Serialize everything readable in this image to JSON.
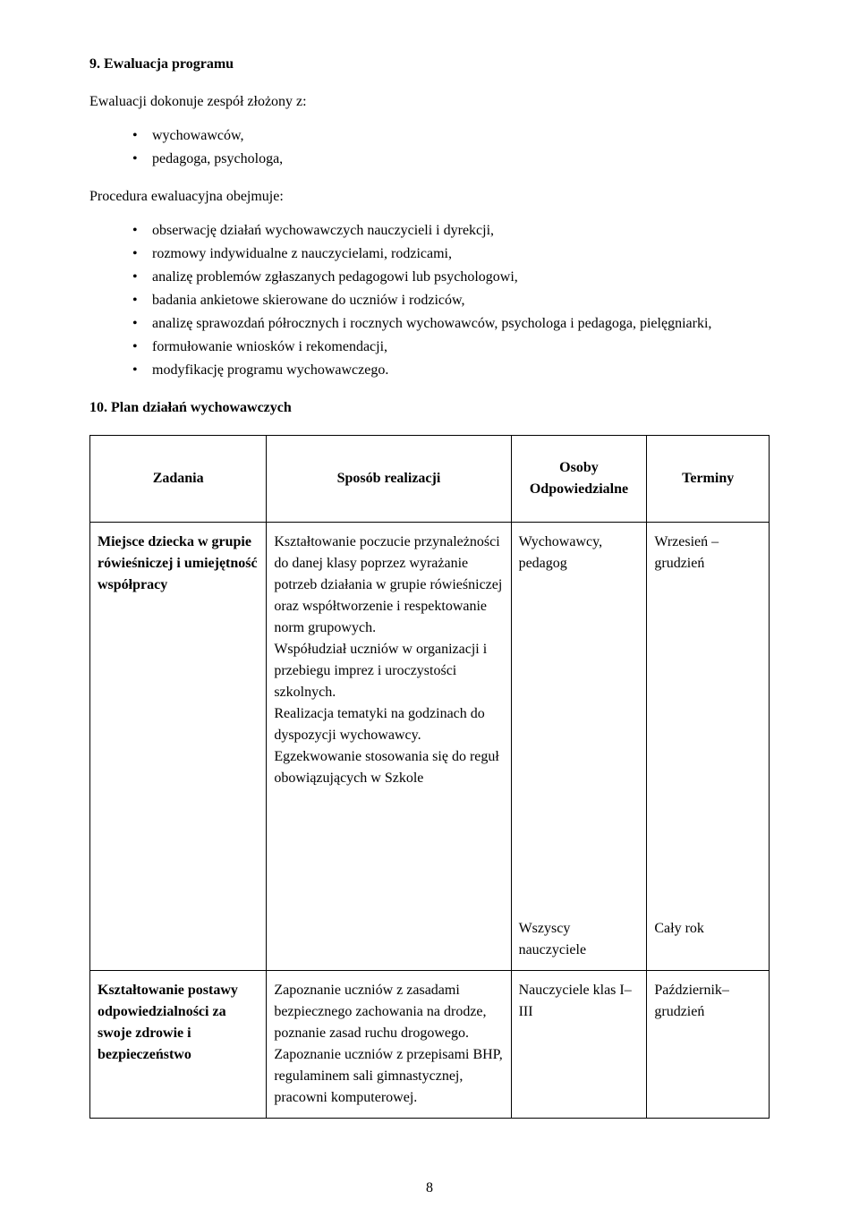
{
  "heading1": "9. Ewaluacja programu",
  "intro1": "Ewaluacji dokonuje zespół złożony z:",
  "list1": [
    "wychowawców,",
    "pedagoga, psychologa,"
  ],
  "intro2": "Procedura ewaluacyjna obejmuje:",
  "list2": [
    "obserwację działań wychowawczych nauczycieli i dyrekcji,",
    "rozmowy indywidualne z nauczycielami, rodzicami,",
    "analizę problemów zgłaszanych pedagogowi lub psychologowi,",
    "badania ankietowe skierowane do uczniów i rodziców,",
    "analizę sprawozdań półrocznych i rocznych wychowawców, psychologa i pedagoga, pielęgniarki,",
    "formułowanie wniosków i rekomendacji,",
    "modyfikację programu wychowawczego."
  ],
  "heading2": "10. Plan działań wychowawczych",
  "table": {
    "headers": [
      "Zadania",
      "Sposób realizacji",
      "Osoby Odpowiedzialne",
      "Terminy"
    ],
    "rows": [
      {
        "zadania": "Miejsce dziecka w grupie rówieśniczej i umiejętność współpracy",
        "sposob": "Kształtowanie poczucie przynależności do danej klasy poprzez wyrażanie potrzeb działania w grupie rówieśniczej oraz współtworzenie i respektowanie norm grupowych.\nWspółudział uczniów w organizacji i przebiegu imprez i uroczystości szkolnych.\nRealizacja tematyki na godzinach do dyspozycji wychowawcy.\nEgzekwowanie stosowania się do reguł obowiązujących w Szkole",
        "osoby": "Wychowawcy, pedagog\n\n\n\n\n\n\n\n\nWszyscy nauczyciele",
        "terminy": "Wrzesień –grudzień\n\n\n\n\n\n\n\n\nCały rok"
      },
      {
        "zadania": "Kształtowanie postawy odpowiedzialności za swoje zdrowie i bezpieczeństwo",
        "sposob": "Zapoznanie uczniów z zasadami bezpiecznego zachowania na drodze, poznanie zasad ruchu drogowego. Zapoznanie uczniów z przepisami BHP, regulaminem sali gimnastycznej, pracowni komputerowej.",
        "osoby": "Nauczyciele klas I–III",
        "terminy": "Październik– grudzień"
      }
    ]
  },
  "pageNumber": "8"
}
